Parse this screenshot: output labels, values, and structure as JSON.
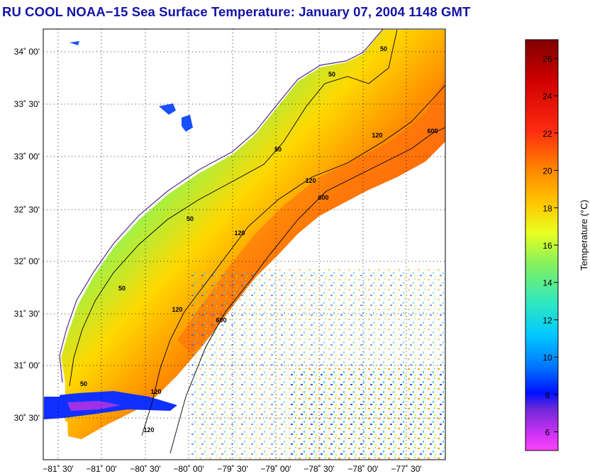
{
  "title": "RU COOL  NOAA−15  Sea Surface Temperature:  January 07, 2004 1148 GMT",
  "map": {
    "lat_ticks": [
      "34˚ 00'",
      "33˚ 30'",
      "33˚ 00'",
      "32˚ 30'",
      "32˚ 00'",
      "31˚ 30'",
      "31˚ 00'",
      "30˚ 30'"
    ],
    "lon_ticks": [
      "−81˚ 30'",
      "−81˚ 00'",
      "−80˚ 30'",
      "−80˚ 00'",
      "−79˚ 30'",
      "−79˚ 00'",
      "−78˚ 30'",
      "−78˚ 00'",
      "−77˚ 30'"
    ],
    "grid": true,
    "contour_labels": [
      "50",
      "50",
      "50",
      "50",
      "50",
      "50",
      "120",
      "120",
      "120",
      "120",
      "120",
      "120",
      "600",
      "600",
      "600"
    ]
  },
  "colorbar": {
    "label": "Temperature (°C)",
    "ticks": [
      "26",
      "24",
      "22",
      "20",
      "18",
      "16",
      "14",
      "12",
      "10",
      "8",
      "6"
    ],
    "range": [
      5,
      27
    ],
    "colors": {
      "magenta": "#ff40ff",
      "purple": "#9020d0",
      "blue": "#0010ff",
      "cyan": "#00c8ff",
      "green": "#60e060",
      "yellow": "#ffe000",
      "orange": "#ff8a00",
      "red": "#ff1010",
      "darkred": "#800000"
    }
  },
  "colors": {
    "title": "#1313a6",
    "land": "#ffffff",
    "cloud": "#ffffff"
  }
}
